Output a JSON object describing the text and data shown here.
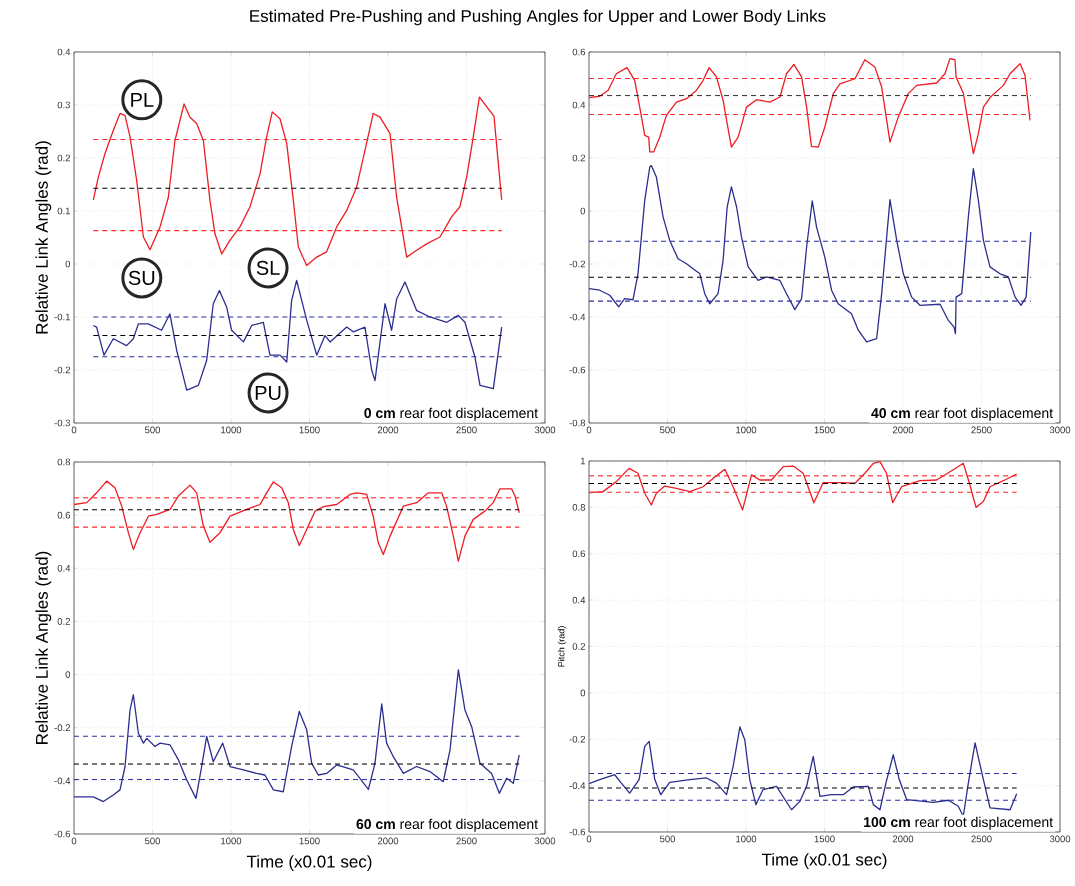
{
  "chart_data": [
    {
      "type": "line",
      "title": "Estimated Pre-Pushing and Pushing Angles for Upper and Lower Body Links",
      "ylabel": "Relative Link Angles (rad)",
      "xlim": [
        0,
        3000
      ],
      "xticks": [
        0,
        500,
        1000,
        1500,
        2000,
        2500,
        3000
      ],
      "ylim": [
        -0.3,
        0.4
      ],
      "yticks": [
        -0.3,
        -0.2,
        -0.1,
        0,
        0.1,
        0.2,
        0.3,
        0.4
      ],
      "grid": true,
      "series": [
        {
          "color": "#ee1c24",
          "x": [
            123,
            155,
            197,
            250,
            293,
            325,
            357,
            399,
            442,
            484,
            548,
            601,
            643,
            701,
            739,
            781,
            824,
            866,
            898,
            941,
            994,
            1057,
            1121,
            1185,
            1227,
            1263,
            1312,
            1355,
            1397,
            1429,
            1482,
            1546,
            1609,
            1673,
            1737,
            1800,
            1853,
            1906,
            1949,
            2013,
            2055,
            2119,
            2183,
            2246,
            2331,
            2405,
            2458,
            2501,
            2543,
            2582,
            2675,
            2724
          ],
          "values": [
            0.121,
            0.164,
            0.208,
            0.252,
            0.284,
            0.28,
            0.24,
            0.158,
            0.051,
            0.027,
            0.07,
            0.126,
            0.233,
            0.302,
            0.277,
            0.265,
            0.233,
            0.12,
            0.057,
            0.019,
            0.045,
            0.07,
            0.108,
            0.17,
            0.24,
            0.287,
            0.274,
            0.227,
            0.12,
            0.032,
            -0.003,
            0.013,
            0.023,
            0.07,
            0.101,
            0.145,
            0.214,
            0.284,
            0.277,
            0.246,
            0.126,
            0.013,
            0.026,
            0.038,
            0.051,
            0.089,
            0.108,
            0.164,
            0.24,
            0.315,
            0.279,
            0.121
          ]
        },
        {
          "color": "#2b2e8f",
          "x": [
            123,
            144,
            191,
            250,
            335,
            378,
            410,
            473,
            558,
            611,
            654,
            718,
            792,
            845,
            887,
            926,
            972,
            1004,
            1079,
            1132,
            1206,
            1248,
            1312,
            1355,
            1386,
            1418,
            1482,
            1546,
            1599,
            1631,
            1737,
            1779,
            1853,
            1896,
            1917,
            1981,
            2023,
            2055,
            2108,
            2183,
            2268,
            2374,
            2448,
            2490,
            2554,
            2586,
            2671,
            2724
          ],
          "values": [
            -0.116,
            -0.119,
            -0.172,
            -0.141,
            -0.154,
            -0.141,
            -0.113,
            -0.113,
            -0.125,
            -0.094,
            -0.163,
            -0.238,
            -0.229,
            -0.182,
            -0.075,
            -0.05,
            -0.081,
            -0.125,
            -0.147,
            -0.116,
            -0.11,
            -0.172,
            -0.172,
            -0.185,
            -0.069,
            -0.031,
            -0.106,
            -0.172,
            -0.135,
            -0.147,
            -0.119,
            -0.128,
            -0.119,
            -0.2,
            -0.22,
            -0.075,
            -0.125,
            -0.066,
            -0.034,
            -0.088,
            -0.1,
            -0.11,
            -0.097,
            -0.11,
            -0.176,
            -0.229,
            -0.235,
            -0.119
          ]
        }
      ],
      "ref_lines": [
        {
          "axis": "y",
          "value": 0.235,
          "color": "#ff2a2a",
          "line_style": "dashed"
        },
        {
          "axis": "y",
          "value": 0.143,
          "color": "#000000",
          "line_style": "dashed"
        },
        {
          "axis": "y",
          "value": 0.063,
          "color": "#ff2a2a",
          "line_style": "dashed"
        },
        {
          "axis": "y",
          "value": -0.1,
          "color": "#2b2e9f",
          "line_style": "dashed"
        },
        {
          "axis": "y",
          "value": -0.135,
          "color": "#000000",
          "line_style": "dashed"
        },
        {
          "axis": "y",
          "value": -0.175,
          "color": "#2b2e9f",
          "line_style": "dashed"
        }
      ],
      "annotations": [
        "PL",
        "SU",
        "SL",
        "PU",
        "**0 cm** rear foot displacement"
      ]
    },
    {
      "type": "line",
      "xlim": [
        0,
        3000
      ],
      "xticks": [
        0,
        500,
        1000,
        1500,
        2000,
        2500,
        3000
      ],
      "ylim": [
        -0.8,
        0.6
      ],
      "yticks": [
        -0.8,
        -0.6,
        -0.4,
        -0.2,
        0,
        0.2,
        0.4,
        0.6
      ],
      "grid": true,
      "series": [
        {
          "color": "#ee1c24",
          "x": [
            0,
            68,
            121,
            174,
            242,
            291,
            323,
            355,
            380,
            387,
            412,
            451,
            493,
            557,
            621,
            684,
            727,
            765,
            812,
            854,
            880,
            907,
            950,
            1003,
            1067,
            1152,
            1216,
            1258,
            1305,
            1354,
            1386,
            1417,
            1460,
            1502,
            1556,
            1598,
            1694,
            1757,
            1821,
            1864,
            1917,
            1970,
            2034,
            2087,
            2214,
            2267,
            2299,
            2331,
            2338,
            2385,
            2416,
            2448,
            2480,
            2512,
            2554,
            2639,
            2682,
            2746,
            2777,
            2809
          ],
          "values": [
            0.428,
            0.433,
            0.455,
            0.518,
            0.541,
            0.493,
            0.392,
            0.285,
            0.279,
            0.223,
            0.223,
            0.279,
            0.361,
            0.411,
            0.424,
            0.455,
            0.493,
            0.541,
            0.506,
            0.418,
            0.33,
            0.241,
            0.279,
            0.392,
            0.42,
            0.411,
            0.43,
            0.518,
            0.553,
            0.506,
            0.392,
            0.244,
            0.241,
            0.317,
            0.443,
            0.48,
            0.499,
            0.571,
            0.543,
            0.468,
            0.26,
            0.355,
            0.443,
            0.474,
            0.483,
            0.518,
            0.575,
            0.571,
            0.506,
            0.443,
            0.33,
            0.216,
            0.292,
            0.392,
            0.428,
            0.474,
            0.518,
            0.556,
            0.512,
            0.342
          ]
        },
        {
          "color": "#2b2e8f",
          "x": [
            0,
            68,
            132,
            189,
            227,
            280,
            312,
            355,
            387,
            397,
            429,
            472,
            514,
            567,
            621,
            663,
            706,
            737,
            769,
            822,
            854,
            880,
            907,
            940,
            971,
            1014,
            1077,
            1131,
            1216,
            1258,
            1311,
            1354,
            1386,
            1422,
            1449,
            1502,
            1545,
            1587,
            1672,
            1715,
            1768,
            1832,
            1864,
            1896,
            1917,
            1960,
            2002,
            2055,
            2108,
            2236,
            2289,
            2325,
            2334,
            2338,
            2374,
            2416,
            2448,
            2480,
            2512,
            2554,
            2618,
            2671,
            2714,
            2752,
            2784,
            2814
          ],
          "values": [
            -0.293,
            -0.299,
            -0.318,
            -0.362,
            -0.331,
            -0.335,
            -0.237,
            0.04,
            0.166,
            0.172,
            0.128,
            -0.023,
            -0.111,
            -0.18,
            -0.199,
            -0.218,
            -0.237,
            -0.312,
            -0.35,
            -0.312,
            -0.186,
            0.015,
            0.091,
            0.015,
            -0.098,
            -0.211,
            -0.262,
            -0.249,
            -0.262,
            -0.312,
            -0.372,
            -0.331,
            -0.136,
            0.038,
            -0.06,
            -0.174,
            -0.299,
            -0.35,
            -0.388,
            -0.45,
            -0.494,
            -0.482,
            -0.312,
            -0.098,
            0.043,
            -0.111,
            -0.237,
            -0.325,
            -0.356,
            -0.352,
            -0.413,
            -0.438,
            -0.463,
            -0.325,
            -0.312,
            -0.023,
            0.16,
            0.04,
            -0.111,
            -0.211,
            -0.237,
            -0.249,
            -0.325,
            -0.356,
            -0.325,
            -0.079
          ]
        }
      ],
      "ref_lines": [
        {
          "axis": "y",
          "value": 0.5,
          "color": "#ff2a2a",
          "line_style": "dashed"
        },
        {
          "axis": "y",
          "value": 0.435,
          "color": "#000000",
          "line_style": "dashed"
        },
        {
          "axis": "y",
          "value": 0.364,
          "color": "#ff2a2a",
          "line_style": "dashed"
        },
        {
          "axis": "y",
          "value": -0.114,
          "color": "#2b2e9f",
          "line_style": "dashed"
        },
        {
          "axis": "y",
          "value": -0.25,
          "color": "#000000",
          "line_style": "dashed"
        },
        {
          "axis": "y",
          "value": -0.34,
          "color": "#2b2e9f",
          "line_style": "dashed"
        }
      ],
      "annotations": [
        "**40 cm** rear foot displacement"
      ]
    },
    {
      "type": "line",
      "xlabel": "Time (x0.01 sec)",
      "ylabel": "Relative Link Angles (rad)",
      "xlim": [
        0,
        3000
      ],
      "xticks": [
        0,
        500,
        1000,
        1500,
        2000,
        2500,
        3000
      ],
      "ylim": [
        -0.6,
        0.8
      ],
      "yticks": [
        -0.6,
        -0.4,
        -0.2,
        0,
        0.2,
        0.4,
        0.6,
        0.8
      ],
      "grid": true,
      "series": [
        {
          "color": "#ee1c24",
          "x": [
            0,
            81,
            144,
            208,
            261,
            304,
            346,
            378,
            421,
            474,
            527,
            612,
            665,
            739,
            781,
            824,
            866,
            930,
            994,
            1100,
            1185,
            1227,
            1270,
            1323,
            1365,
            1397,
            1435,
            1482,
            1535,
            1588,
            1673,
            1758,
            1800,
            1864,
            1906,
            1938,
            1970,
            2013,
            2098,
            2182,
            2257,
            2342,
            2373,
            2416,
            2448,
            2490,
            2543,
            2617,
            2670,
            2713,
            2787,
            2809,
            2836
          ],
          "values": [
            0.64,
            0.647,
            0.684,
            0.728,
            0.703,
            0.634,
            0.534,
            0.471,
            0.534,
            0.596,
            0.603,
            0.622,
            0.672,
            0.713,
            0.684,
            0.559,
            0.498,
            0.534,
            0.596,
            0.622,
            0.64,
            0.684,
            0.725,
            0.703,
            0.647,
            0.546,
            0.486,
            0.546,
            0.615,
            0.632,
            0.64,
            0.678,
            0.684,
            0.678,
            0.596,
            0.496,
            0.452,
            0.521,
            0.634,
            0.647,
            0.684,
            0.684,
            0.634,
            0.521,
            0.427,
            0.521,
            0.584,
            0.615,
            0.647,
            0.699,
            0.699,
            0.672,
            0.609
          ]
        },
        {
          "color": "#2b2e8f",
          "x": [
            0,
            123,
            187,
            250,
            293,
            325,
            357,
            378,
            410,
            442,
            463,
            516,
            548,
            612,
            665,
            718,
            777,
            813,
            845,
            887,
            947,
            994,
            1079,
            1163,
            1216,
            1270,
            1333,
            1386,
            1435,
            1482,
            1514,
            1556,
            1609,
            1673,
            1779,
            1875,
            1917,
            1960,
            1991,
            2034,
            2098,
            2182,
            2267,
            2352,
            2395,
            2448,
            2490,
            2533,
            2586,
            2660,
            2709,
            2756,
            2798,
            2836
          ],
          "values": [
            -0.46,
            -0.46,
            -0.478,
            -0.453,
            -0.434,
            -0.346,
            -0.133,
            -0.076,
            -0.221,
            -0.258,
            -0.24,
            -0.271,
            -0.258,
            -0.265,
            -0.321,
            -0.397,
            -0.466,
            -0.346,
            -0.233,
            -0.328,
            -0.258,
            -0.346,
            -0.359,
            -0.372,
            -0.378,
            -0.434,
            -0.441,
            -0.271,
            -0.139,
            -0.208,
            -0.334,
            -0.378,
            -0.372,
            -0.34,
            -0.359,
            -0.432,
            -0.334,
            -0.11,
            -0.258,
            -0.309,
            -0.372,
            -0.346,
            -0.365,
            -0.403,
            -0.284,
            0.018,
            -0.133,
            -0.196,
            -0.334,
            -0.372,
            -0.447,
            -0.39,
            -0.409,
            -0.302
          ]
        }
      ],
      "ref_lines": [
        {
          "axis": "y",
          "value": 0.665,
          "color": "#ff2a2a",
          "line_style": "dashed"
        },
        {
          "axis": "y",
          "value": 0.62,
          "color": "#000000",
          "line_style": "dashed"
        },
        {
          "axis": "y",
          "value": 0.555,
          "color": "#ff2a2a",
          "line_style": "dashed"
        },
        {
          "axis": "y",
          "value": -0.232,
          "color": "#2b2e9f",
          "line_style": "dashed"
        },
        {
          "axis": "y",
          "value": -0.337,
          "color": "#000000",
          "line_style": "dashed"
        },
        {
          "axis": "y",
          "value": -0.395,
          "color": "#2b2e9f",
          "line_style": "dashed"
        }
      ],
      "annotations": [
        "**60 cm** rear foot displacement"
      ]
    },
    {
      "type": "line",
      "xlabel": "Time (x0.01 sec)",
      "ylabel": "Pitch (rad)",
      "xlim": [
        0,
        3000
      ],
      "xticks": [
        0,
        500,
        1000,
        1500,
        2000,
        2500,
        3000
      ],
      "ylim": [
        -0.6,
        1
      ],
      "yticks": [
        -0.6,
        -0.4,
        -0.2,
        0,
        0.2,
        0.4,
        0.6,
        0.8,
        1
      ],
      "grid": true,
      "series": [
        {
          "color": "#ee1c24",
          "x": [
            0,
            89,
            174,
            255,
            312,
            355,
            397,
            429,
            482,
            557,
            642,
            727,
            790,
            865,
            918,
            978,
            1035,
            1088,
            1162,
            1237,
            1301,
            1364,
            1432,
            1492,
            1598,
            1694,
            1757,
            1811,
            1853,
            1895,
            1934,
            1991,
            2108,
            2214,
            2310,
            2384,
            2423,
            2465,
            2512,
            2554,
            2639,
            2724
          ],
          "values": [
            0.864,
            0.868,
            0.911,
            0.968,
            0.947,
            0.861,
            0.81,
            0.861,
            0.892,
            0.882,
            0.868,
            0.889,
            0.925,
            0.964,
            0.889,
            0.789,
            0.94,
            0.918,
            0.918,
            0.976,
            0.978,
            0.947,
            0.82,
            0.907,
            0.907,
            0.904,
            0.947,
            0.99,
            0.997,
            0.947,
            0.82,
            0.889,
            0.915,
            0.918,
            0.958,
            0.99,
            0.904,
            0.8,
            0.825,
            0.889,
            0.915,
            0.944
          ]
        },
        {
          "color": "#2b2e8f",
          "x": [
            0,
            68,
            164,
            206,
            259,
            319,
            355,
            383,
            419,
            457,
            514,
            642,
            748,
            812,
            876,
            918,
            961,
            992,
            1024,
            1063,
            1109,
            1194,
            1290,
            1343,
            1386,
            1428,
            1471,
            1545,
            1619,
            1683,
            1779,
            1811,
            1853,
            1891,
            1938,
            1976,
            2023,
            2193,
            2289,
            2352,
            2384,
            2416,
            2459,
            2512,
            2554,
            2682,
            2724
          ],
          "values": [
            -0.392,
            -0.374,
            -0.353,
            -0.389,
            -0.432,
            -0.374,
            -0.231,
            -0.209,
            -0.374,
            -0.439,
            -0.386,
            -0.374,
            -0.367,
            -0.389,
            -0.439,
            -0.317,
            -0.147,
            -0.202,
            -0.374,
            -0.482,
            -0.417,
            -0.403,
            -0.504,
            -0.468,
            -0.403,
            -0.274,
            -0.446,
            -0.439,
            -0.439,
            -0.406,
            -0.403,
            -0.482,
            -0.504,
            -0.389,
            -0.267,
            -0.374,
            -0.46,
            -0.472,
            -0.463,
            -0.489,
            -0.532,
            -0.389,
            -0.216,
            -0.374,
            -0.496,
            -0.504,
            -0.435
          ]
        }
      ],
      "ref_lines": [
        {
          "axis": "y",
          "value": 0.936,
          "color": "#ff2a2a",
          "line_style": "dashed"
        },
        {
          "axis": "y",
          "value": 0.903,
          "color": "#000000",
          "line_style": "dashed"
        },
        {
          "axis": "y",
          "value": 0.865,
          "color": "#ff2a2a",
          "line_style": "dashed"
        },
        {
          "axis": "y",
          "value": -0.348,
          "color": "#2b2e9f",
          "line_style": "dashed"
        },
        {
          "axis": "y",
          "value": -0.41,
          "color": "#000000",
          "line_style": "dashed"
        },
        {
          "axis": "y",
          "value": -0.463,
          "color": "#2b2e9f",
          "line_style": "dashed"
        }
      ],
      "annotations": [
        "**100 cm** rear foot displacement"
      ]
    }
  ]
}
